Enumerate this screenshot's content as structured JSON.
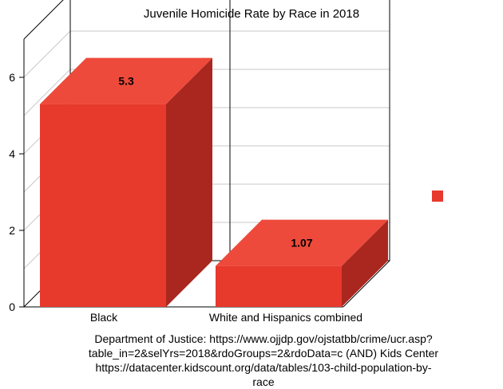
{
  "chart_data": {
    "type": "bar",
    "title": "Juvenile Homicide Rate by Race in 2018",
    "categories": [
      "Black",
      "White and Hispanics combined"
    ],
    "series": [
      {
        "values": [
          5.3,
          1.07
        ],
        "data_labels": [
          "5.3",
          "1.07"
        ]
      }
    ],
    "yticks": [
      "0",
      "2",
      "4",
      "6"
    ],
    "ylim": [
      0,
      7
    ],
    "xlabel": "",
    "ylabel": "",
    "grid": true,
    "three_d": true,
    "legend_position": "right",
    "colors": {
      "bar": "#E8392D",
      "bar_top": "#EE4A3B",
      "bar_side": "#A9271E",
      "grid": "#C8C8C8",
      "axis": "#000000"
    }
  },
  "footnote": [
    "Department of Justice: https://www.ojjdp.gov/ojstatbb/crime/ucr.asp?",
    "table_in=2&selYrs=2018&rdoGroups=2&rdoData=c (AND) Kids Center",
    "https://datacenter.kidscount.org/data/tables/103-child-population-by-",
    "race"
  ]
}
